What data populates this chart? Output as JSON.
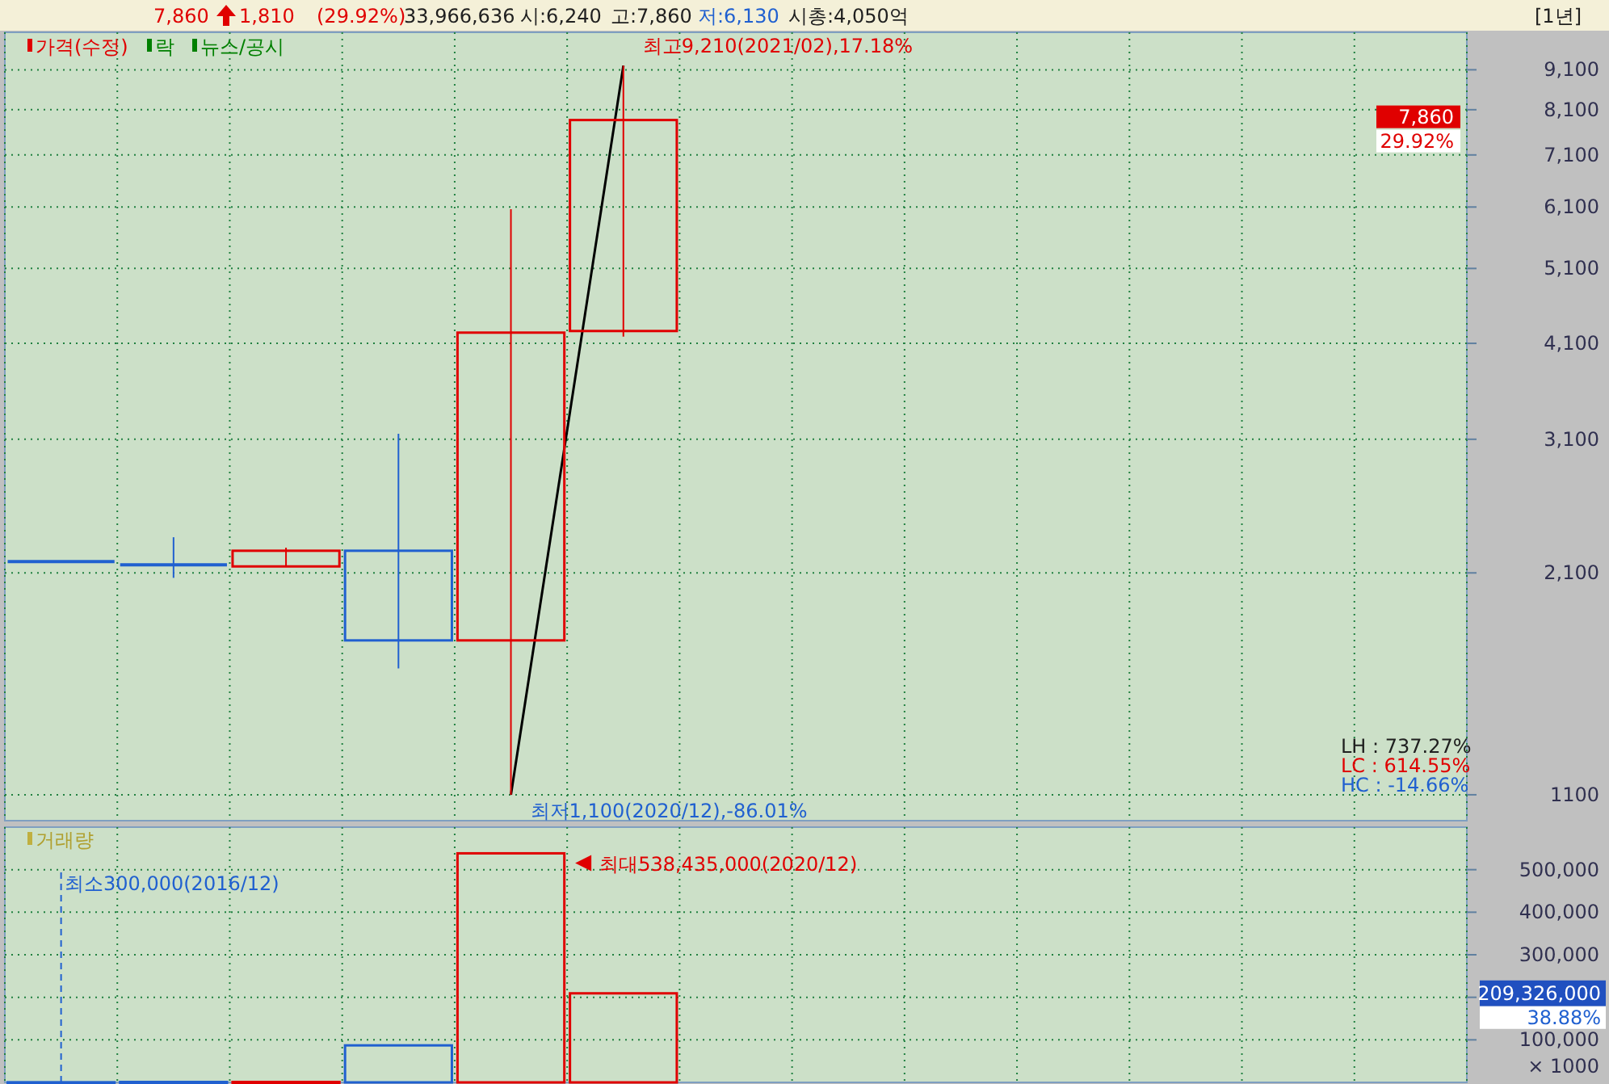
{
  "chart_data": [
    {
      "type": "candlestick",
      "categories": [
        null,
        null,
        null,
        null,
        null,
        null,
        null,
        null,
        null,
        null,
        null,
        null,
        null
      ],
      "ohlc": [
        [
          2170,
          2170,
          2170,
          2170
        ],
        [
          2150,
          2330,
          2070,
          2150
        ],
        [
          2140,
          2260,
          2140,
          2240
        ],
        [
          2240,
          3150,
          1590,
          1725
        ],
        [
          1725,
          6060,
          1100,
          4230
        ],
        [
          4250,
          9210,
          4180,
          7860
        ],
        null,
        null,
        null,
        null,
        null,
        null,
        null
      ],
      "colors": [
        "#2060d0",
        "#2060d0",
        "#e00000",
        "#2060d0",
        "#e00000",
        "#e00000",
        null,
        null,
        null,
        null,
        null,
        null,
        null
      ],
      "series": [
        {
          "type": "line",
          "color": "#000000",
          "values": [
            null,
            null,
            null,
            null,
            1100,
            9210,
            null,
            null,
            null,
            null,
            null,
            null,
            null
          ]
        }
      ],
      "log": true,
      "ylim": [
        1020,
        10150
      ],
      "yticks": [
        1100,
        {
          "value": 2100,
          "label": "2,100"
        },
        {
          "value": 3100,
          "label": "3,100"
        },
        {
          "value": 4100,
          "label": "4,100"
        },
        {
          "value": 5100,
          "label": "5,100"
        },
        {
          "value": 6100,
          "label": "6,100"
        },
        {
          "value": 7100,
          "label": "7,100"
        },
        {
          "value": 8100,
          "label": "8,100"
        },
        {
          "value": 9100,
          "label": "9,100"
        }
      ],
      "grid": true,
      "tick_labels": "y",
      "annotations": [
        "7,860",
        "1,810",
        "(29.92%)",
        "33,966,636",
        "시:6,240",
        "고:7,860",
        "저:6,130",
        "시총:4,050억",
        "[1년]",
        "가격(수정)",
        "락",
        "뉴스/공시",
        "최고9,210(2021/02),17.18%",
        "최저1,100(2020/12),-86.01%",
        "LH : 737.27%",
        "LC : 614.55%",
        "HC : -14.66%",
        "7,860",
        "29.92%"
      ]
    },
    {
      "type": "bar",
      "categories": [
        null,
        null,
        null,
        null,
        null,
        null,
        null,
        null,
        null,
        null,
        null,
        null,
        null
      ],
      "values": [
        300,
        1000,
        1000,
        87000,
        538435,
        209326,
        null,
        null,
        null,
        null,
        null,
        null,
        null
      ],
      "colors": [
        "#2060d0",
        "#2060d0",
        "#e00000",
        "#2060d0",
        "#e00000",
        "#e00000",
        null,
        null,
        null,
        null,
        null,
        null,
        null
      ],
      "ylim": [
        0,
        600000
      ],
      "yticks": [
        {
          "value": 100000,
          "label": "100,000"
        },
        {
          "value": 200000,
          "label": null
        },
        {
          "value": 300000,
          "label": "300,000"
        },
        {
          "value": 400000,
          "label": "400,000"
        },
        {
          "value": 500000,
          "label": "500,000"
        }
      ],
      "ylabel": "× 1000",
      "grid": true,
      "tick_labels": "y",
      "annotations": [
        "거래량",
        "최소300,000(2016/12)",
        "최대538,435,000(2020/12)",
        "209,326,000",
        "38.88%"
      ]
    }
  ]
}
